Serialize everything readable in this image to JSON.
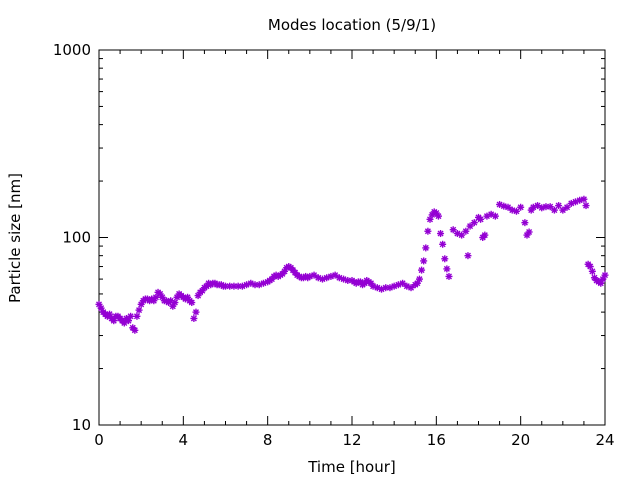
{
  "chart_data": {
    "type": "scatter",
    "title": "Modes location (5/9/1)",
    "xlabel": "Time [hour]",
    "ylabel": "Particle size [nm]",
    "xlim": [
      0,
      24
    ],
    "ylim": [
      10,
      1000
    ],
    "yscale": "log",
    "x_ticks": [
      0,
      4,
      8,
      12,
      16,
      20,
      24
    ],
    "x_tick_labels": [
      "0",
      "4",
      "8",
      "12",
      "16",
      "20",
      "24"
    ],
    "y_ticks": [
      10,
      100,
      1000
    ],
    "y_tick_labels": [
      "10",
      "100",
      "1000"
    ],
    "grid": false,
    "marker_color": "#9400d3",
    "marker": "asterisk",
    "series": [
      {
        "points": [
          [
            0.0,
            44
          ],
          [
            0.1,
            42
          ],
          [
            0.2,
            40
          ],
          [
            0.3,
            39
          ],
          [
            0.4,
            38
          ],
          [
            0.5,
            39
          ],
          [
            0.6,
            37
          ],
          [
            0.7,
            36
          ],
          [
            0.8,
            38
          ],
          [
            0.9,
            38
          ],
          [
            1.0,
            37
          ],
          [
            1.1,
            36
          ],
          [
            1.2,
            35
          ],
          [
            1.3,
            37
          ],
          [
            1.4,
            36
          ],
          [
            1.5,
            38
          ],
          [
            1.6,
            33
          ],
          [
            1.7,
            32
          ],
          [
            1.8,
            38
          ],
          [
            1.9,
            41
          ],
          [
            2.0,
            44
          ],
          [
            2.1,
            46
          ],
          [
            2.2,
            47
          ],
          [
            2.3,
            47
          ],
          [
            2.4,
            46
          ],
          [
            2.5,
            47
          ],
          [
            2.6,
            46
          ],
          [
            2.7,
            48
          ],
          [
            2.8,
            51
          ],
          [
            2.9,
            50
          ],
          [
            3.0,
            48
          ],
          [
            3.1,
            46
          ],
          [
            3.2,
            46
          ],
          [
            3.3,
            45
          ],
          [
            3.4,
            46
          ],
          [
            3.5,
            43
          ],
          [
            3.6,
            45
          ],
          [
            3.7,
            48
          ],
          [
            3.8,
            50
          ],
          [
            3.9,
            49
          ],
          [
            4.0,
            48
          ],
          [
            4.1,
            47
          ],
          [
            4.2,
            48
          ],
          [
            4.3,
            46
          ],
          [
            4.4,
            45
          ],
          [
            4.5,
            37
          ],
          [
            4.6,
            40
          ],
          [
            4.7,
            49
          ],
          [
            4.8,
            51
          ],
          [
            4.9,
            52
          ],
          [
            5.0,
            54
          ],
          [
            5.1,
            55
          ],
          [
            5.2,
            57
          ],
          [
            5.3,
            56
          ],
          [
            5.4,
            57
          ],
          [
            5.5,
            57
          ],
          [
            5.6,
            56
          ],
          [
            5.7,
            56
          ],
          [
            5.8,
            56
          ],
          [
            5.9,
            55
          ],
          [
            6.0,
            55
          ],
          [
            6.2,
            55
          ],
          [
            6.4,
            55
          ],
          [
            6.6,
            55
          ],
          [
            6.8,
            55
          ],
          [
            7.0,
            56
          ],
          [
            7.2,
            57
          ],
          [
            7.4,
            56
          ],
          [
            7.6,
            56
          ],
          [
            7.8,
            57
          ],
          [
            8.0,
            58
          ],
          [
            8.1,
            59
          ],
          [
            8.2,
            60
          ],
          [
            8.3,
            62
          ],
          [
            8.4,
            63
          ],
          [
            8.5,
            62
          ],
          [
            8.6,
            63
          ],
          [
            8.7,
            64
          ],
          [
            8.8,
            66
          ],
          [
            8.9,
            69
          ],
          [
            9.0,
            70
          ],
          [
            9.1,
            69
          ],
          [
            9.2,
            67
          ],
          [
            9.3,
            65
          ],
          [
            9.4,
            63
          ],
          [
            9.5,
            62
          ],
          [
            9.6,
            61
          ],
          [
            9.7,
            61
          ],
          [
            9.8,
            62
          ],
          [
            9.9,
            61
          ],
          [
            10.0,
            62
          ],
          [
            10.2,
            63
          ],
          [
            10.4,
            61
          ],
          [
            10.6,
            60
          ],
          [
            10.8,
            61
          ],
          [
            11.0,
            62
          ],
          [
            11.2,
            63
          ],
          [
            11.4,
            61
          ],
          [
            11.6,
            60
          ],
          [
            11.8,
            59
          ],
          [
            12.0,
            59
          ],
          [
            12.1,
            58
          ],
          [
            12.2,
            57
          ],
          [
            12.3,
            58
          ],
          [
            12.4,
            58
          ],
          [
            12.5,
            56
          ],
          [
            12.6,
            57
          ],
          [
            12.7,
            59
          ],
          [
            12.8,
            58
          ],
          [
            12.9,
            57
          ],
          [
            13.0,
            55
          ],
          [
            13.2,
            54
          ],
          [
            13.4,
            53
          ],
          [
            13.6,
            54
          ],
          [
            13.8,
            54
          ],
          [
            14.0,
            55
          ],
          [
            14.2,
            56
          ],
          [
            14.4,
            57
          ],
          [
            14.6,
            55
          ],
          [
            14.8,
            54
          ],
          [
            15.0,
            56
          ],
          [
            15.1,
            57
          ],
          [
            15.2,
            60
          ],
          [
            15.3,
            67
          ],
          [
            15.4,
            75
          ],
          [
            15.5,
            88
          ],
          [
            15.6,
            108
          ],
          [
            15.7,
            125
          ],
          [
            15.8,
            132
          ],
          [
            15.9,
            137
          ],
          [
            16.0,
            135
          ],
          [
            16.1,
            130
          ],
          [
            16.2,
            105
          ],
          [
            16.3,
            92
          ],
          [
            16.4,
            77
          ],
          [
            16.5,
            68
          ],
          [
            16.6,
            62
          ],
          [
            16.8,
            110
          ],
          [
            17.0,
            105
          ],
          [
            17.2,
            103
          ],
          [
            17.4,
            108
          ],
          [
            17.5,
            80
          ],
          [
            17.6,
            115
          ],
          [
            17.8,
            120
          ],
          [
            18.0,
            128
          ],
          [
            18.1,
            125
          ],
          [
            18.2,
            100
          ],
          [
            18.3,
            103
          ],
          [
            18.4,
            130
          ],
          [
            18.6,
            133
          ],
          [
            18.8,
            130
          ],
          [
            19.0,
            150
          ],
          [
            19.2,
            147
          ],
          [
            19.4,
            145
          ],
          [
            19.6,
            140
          ],
          [
            19.8,
            138
          ],
          [
            20.0,
            145
          ],
          [
            20.2,
            120
          ],
          [
            20.3,
            103
          ],
          [
            20.4,
            107
          ],
          [
            20.5,
            140
          ],
          [
            20.6,
            145
          ],
          [
            20.8,
            148
          ],
          [
            21.0,
            144
          ],
          [
            21.2,
            146
          ],
          [
            21.4,
            146
          ],
          [
            21.6,
            140
          ],
          [
            21.8,
            148
          ],
          [
            22.0,
            140
          ],
          [
            22.2,
            145
          ],
          [
            22.4,
            152
          ],
          [
            22.6,
            155
          ],
          [
            22.8,
            158
          ],
          [
            23.0,
            160
          ],
          [
            23.1,
            148
          ],
          [
            23.2,
            72
          ],
          [
            23.3,
            70
          ],
          [
            23.4,
            66
          ],
          [
            23.5,
            61
          ],
          [
            23.6,
            59
          ],
          [
            23.7,
            58
          ],
          [
            23.8,
            57
          ],
          [
            23.9,
            60
          ],
          [
            24.0,
            63
          ]
        ]
      }
    ]
  }
}
